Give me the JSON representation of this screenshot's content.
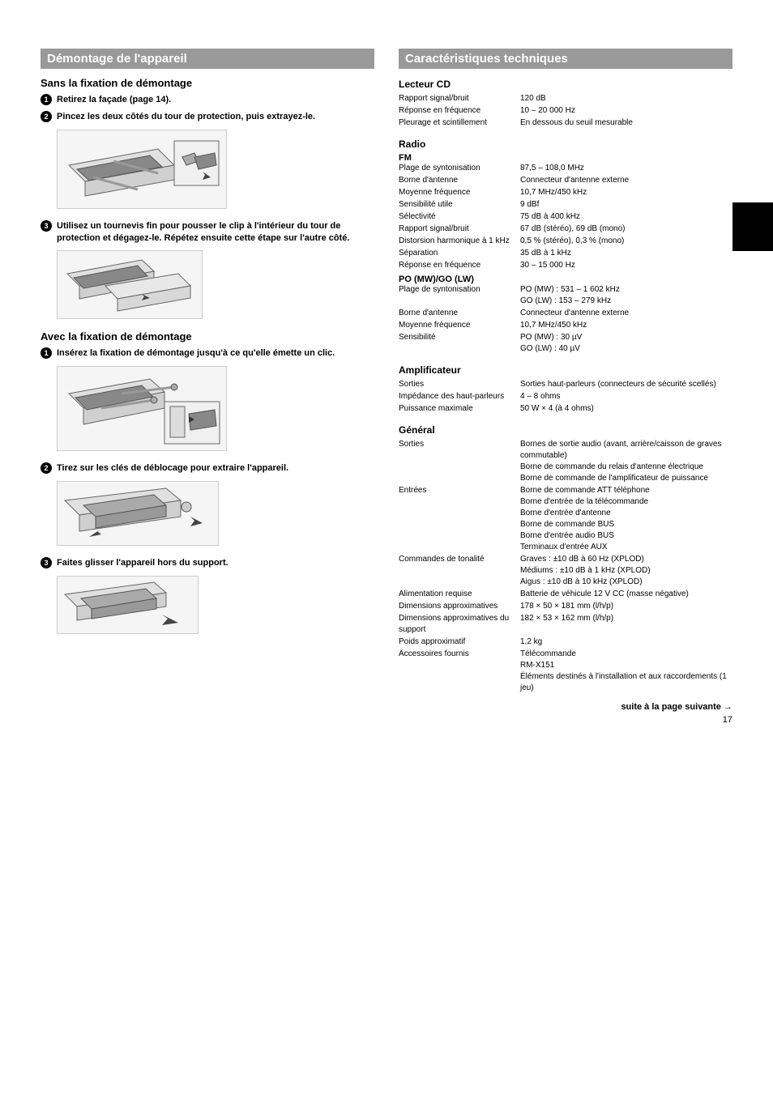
{
  "left": {
    "header": "Démontage de l'appareil",
    "block1": {
      "title": "Sans la fixation de démontage",
      "steps": [
        "Retirez la façade (page 14).",
        "Pincez les deux côtés du tour de protection, puis extrayez-le.",
        "Utilisez un tournevis fin pour pousser le clip à l'intérieur du tour de protection et dégagez-le. Répétez ensuite cette étape sur l'autre côté."
      ]
    },
    "block2": {
      "title": "Avec la fixation de démontage",
      "steps": [
        "Insérez la fixation de démontage jusqu'à ce qu'elle émette un clic.",
        "Tirez sur les clés de déblocage pour extraire l'appareil.",
        "Faites glisser l'appareil hors du support."
      ]
    },
    "illustrations": {
      "illu1_size": "210x98",
      "illu2_size": "180x85",
      "illu3_size": "210x105",
      "illu4_size": "200x80",
      "illu5_size": "175x72"
    }
  },
  "right": {
    "header": "Caractéristiques techniques",
    "sections": [
      {
        "title": "Lecteur CD",
        "rows": [
          {
            "label": "Rapport signal/bruit",
            "value": "120 dB"
          },
          {
            "label": "Réponse en fréquence",
            "value": "10 – 20 000 Hz"
          },
          {
            "label": "Pleurage et scintillement",
            "value": "En dessous du seuil mesurable"
          }
        ]
      },
      {
        "title": "Radio",
        "subtitle1": "FM",
        "rows1": [
          {
            "label": "Plage de syntonisation",
            "value": "87,5 – 108,0 MHz"
          },
          {
            "label": "Borne d'antenne",
            "value": "Connecteur d'antenne externe"
          },
          {
            "label": "Moyenne fréquence",
            "value": "10,7 MHz/450 kHz"
          },
          {
            "label": "Sensibilité utile",
            "value": "9 dBf"
          },
          {
            "label": "Sélectivité",
            "value": "75 dB à 400 kHz"
          },
          {
            "label": "Rapport signal/bruit",
            "value": "67 dB (stéréo), 69 dB (mono)"
          },
          {
            "label": "Distorsion harmonique à 1 kHz",
            "value": "0,5 % (stéréo), 0,3 % (mono)"
          },
          {
            "label": "Séparation",
            "value": "35 dB à 1 kHz"
          },
          {
            "label": "Réponse en fréquence",
            "value": "30 – 15 000 Hz"
          }
        ],
        "subtitle2": "PO (MW)/GO (LW)",
        "rows2": [
          {
            "label": "Plage de syntonisation",
            "value": "PO (MW) : 531 – 1 602 kHz\nGO (LW) : 153 – 279 kHz"
          },
          {
            "label": "Borne d'antenne",
            "value": "Connecteur d'antenne externe"
          },
          {
            "label": "Moyenne fréquence",
            "value": "10,7 MHz/450 kHz"
          },
          {
            "label": "Sensibilité",
            "value": "PO (MW) : 30 µV\nGO (LW) : 40 µV"
          }
        ]
      },
      {
        "title": "Amplificateur",
        "rows": [
          {
            "label": "Sorties",
            "value": "Sorties haut-parleurs (connecteurs de sécurité scellés)"
          },
          {
            "label": "Impédance des haut-parleurs",
            "value": "4 – 8 ohms"
          },
          {
            "label": "Puissance maximale",
            "value": "50 W × 4 (à 4 ohms)"
          }
        ]
      },
      {
        "title": "Général",
        "rows": [
          {
            "label": "Sorties",
            "value": "Bornes de sortie audio (avant, arrière/caisson de graves commutable)\nBorne de commande du relais d'antenne électrique\nBorne de commande de l'amplificateur de puissance"
          },
          {
            "label": "Entrées",
            "value": "Borne de commande ATT téléphone\nBorne d'entrée de la télécommande\nBorne d'entrée d'antenne\nBorne de commande BUS\nBorne d'entrée audio BUS\nTerminaux d'entrée AUX"
          },
          {
            "label": "Commandes de tonalité",
            "value": "Graves : ±10 dB à 60 Hz (XPLOD)\nMédiums : ±10 dB à 1 kHz (XPLOD)\nAigus : ±10 dB à 10 kHz (XPLOD)"
          },
          {
            "label": "Alimentation requise",
            "value": "Batterie de véhicule 12 V CC (masse négative)"
          },
          {
            "label": "Dimensions approximatives",
            "value": "178 × 50 × 181 mm (l/h/p)"
          },
          {
            "label": "Dimensions approximatives du support",
            "value": "182 × 53 × 162 mm (l/h/p)"
          },
          {
            "label": "Poids approximatif",
            "value": "1,2 kg"
          },
          {
            "label": "Accessoires fournis",
            "value": "Télécommande\nRM-X151\nÉléments destinés à l'installation et aux raccordements (1 jeu)"
          }
        ]
      }
    ],
    "continue": "suite à la page suivante →",
    "page_number": "17"
  }
}
